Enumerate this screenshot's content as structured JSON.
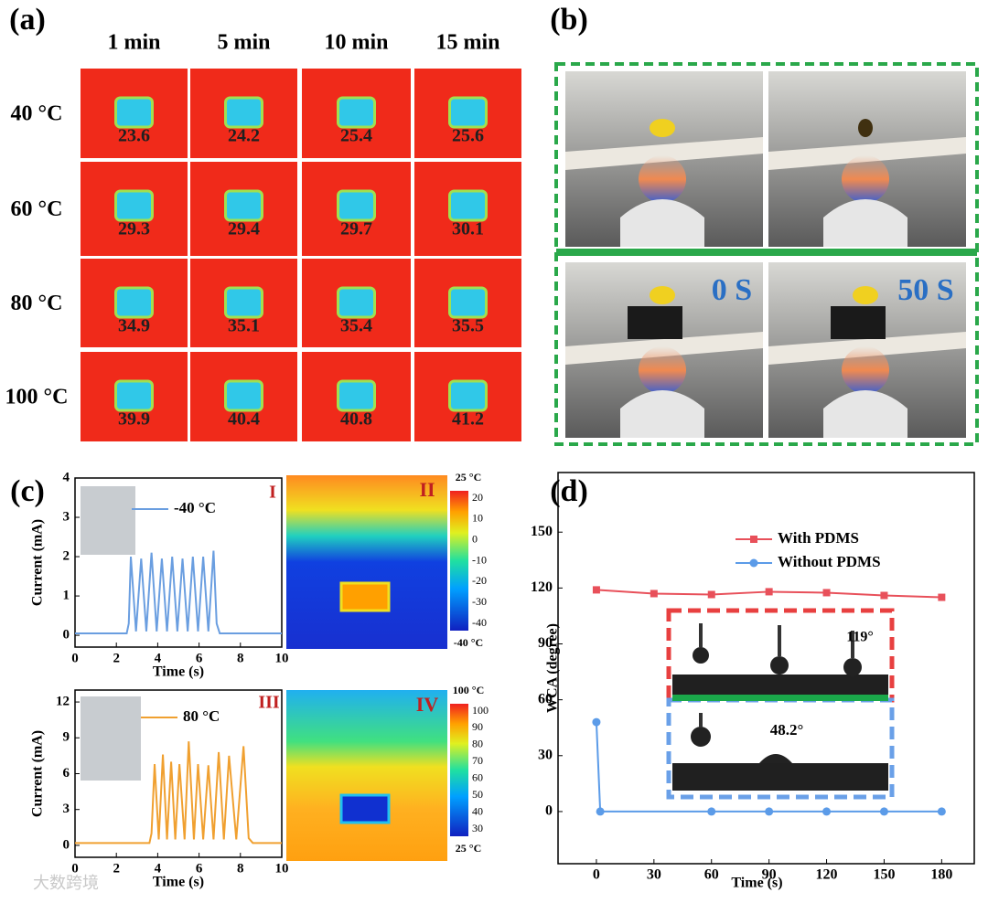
{
  "panel_labels": [
    "(a)",
    "(b)",
    "(c)",
    "(d)"
  ],
  "thermal_grid": {
    "columns": [
      "1 min",
      "5 min",
      "10 min",
      "15 min"
    ],
    "rows": [
      {
        "label": "40 °C",
        "values": [
          23.6,
          24.2,
          25.4,
          25.6
        ]
      },
      {
        "label": "60 °C",
        "values": [
          29.3,
          29.4,
          29.7,
          30.1
        ]
      },
      {
        "label": "80 °C",
        "values": [
          34.9,
          35.1,
          35.4,
          35.5
        ]
      },
      {
        "label": "100 °C",
        "values": [
          39.9,
          40.4,
          40.8,
          41.2
        ]
      }
    ]
  },
  "flame_test": {
    "labels": [
      "0 S",
      "50 S"
    ]
  },
  "thermal_images": [
    {
      "label": "II",
      "top": "25 °C",
      "bottom": "-40 °C",
      "ticks": [
        20,
        10,
        0,
        -10,
        -20,
        -30,
        -40
      ]
    },
    {
      "label": "IV",
      "top": "100 °C",
      "bottom": "25 °C",
      "ticks": [
        100,
        90,
        80,
        70,
        60,
        50,
        40,
        30
      ]
    }
  ],
  "contact_angle_inset": {
    "labels": [
      "119°",
      "48.2°"
    ]
  },
  "watermark": "大数跨境",
  "chart_data": [
    {
      "type": "line",
      "annotation": "I",
      "xlabel": "Time (s)",
      "ylabel": "Current (mA)",
      "xlim": [
        0,
        10
      ],
      "xticks": [
        0,
        2,
        4,
        6,
        8,
        10
      ],
      "ylim": [
        -0.3,
        4
      ],
      "yticks": [
        0,
        1,
        2,
        3,
        4
      ],
      "series": [
        {
          "name": "-40 °C",
          "color": "#6a9ee0",
          "x": [
            0,
            2.5,
            2.6,
            2.7,
            2.95,
            3.2,
            3.45,
            3.7,
            3.95,
            4.2,
            4.45,
            4.7,
            4.95,
            5.2,
            5.45,
            5.7,
            5.95,
            6.2,
            6.45,
            6.7,
            6.85,
            7,
            10
          ],
          "values": [
            0.05,
            0.05,
            0.3,
            2.0,
            0.1,
            1.95,
            0.1,
            2.1,
            0.1,
            1.95,
            0.1,
            2.0,
            0.1,
            1.95,
            0.1,
            2.0,
            0.1,
            2.0,
            0.1,
            2.15,
            0.3,
            0.05,
            0.05
          ]
        }
      ]
    },
    {
      "type": "line",
      "annotation": "III",
      "xlabel": "Time (s)",
      "ylabel": "Current (mA)",
      "xlim": [
        0,
        10
      ],
      "xticks": [
        0,
        2,
        4,
        6,
        8,
        10
      ],
      "ylim": [
        -1,
        13
      ],
      "yticks": [
        0,
        3,
        6,
        9,
        12
      ],
      "series": [
        {
          "name": "80 °C",
          "color": "#f0a030",
          "x": [
            0,
            3.6,
            3.7,
            3.85,
            4.05,
            4.25,
            4.45,
            4.65,
            4.85,
            5.05,
            5.3,
            5.5,
            5.75,
            5.95,
            6.2,
            6.45,
            6.7,
            6.95,
            7.2,
            7.45,
            7.8,
            8.15,
            8.4,
            8.6,
            10
          ],
          "values": [
            0.2,
            0.2,
            1,
            6.8,
            0.5,
            7.6,
            0.5,
            7.0,
            0.5,
            6.8,
            0.5,
            8.7,
            0.5,
            6.8,
            0.5,
            6.7,
            0.5,
            7.8,
            0.5,
            7.5,
            0.5,
            8.3,
            0.6,
            0.2,
            0.2
          ]
        }
      ]
    },
    {
      "type": "line",
      "xlabel": "Time (s)",
      "ylabel": "WCA (degree)",
      "xlim": [
        -20,
        197
      ],
      "xticks": [
        0,
        30,
        60,
        90,
        120,
        150,
        180
      ],
      "ylim": [
        -28,
        182
      ],
      "yticks": [
        0,
        30,
        60,
        90,
        120,
        150
      ],
      "series": [
        {
          "name": "With PDMS",
          "color": "#e8505a",
          "marker": "square",
          "x": [
            0,
            30,
            60,
            90,
            120,
            150,
            180
          ],
          "values": [
            119,
            117,
            116.5,
            118,
            117.5,
            116,
            115
          ]
        },
        {
          "name": "Without PDMS",
          "color": "#5b9be8",
          "marker": "circle",
          "x": [
            0,
            2,
            60,
            90,
            120,
            150,
            180
          ],
          "values": [
            48,
            0,
            0,
            0,
            0,
            0,
            0
          ]
        }
      ]
    }
  ]
}
